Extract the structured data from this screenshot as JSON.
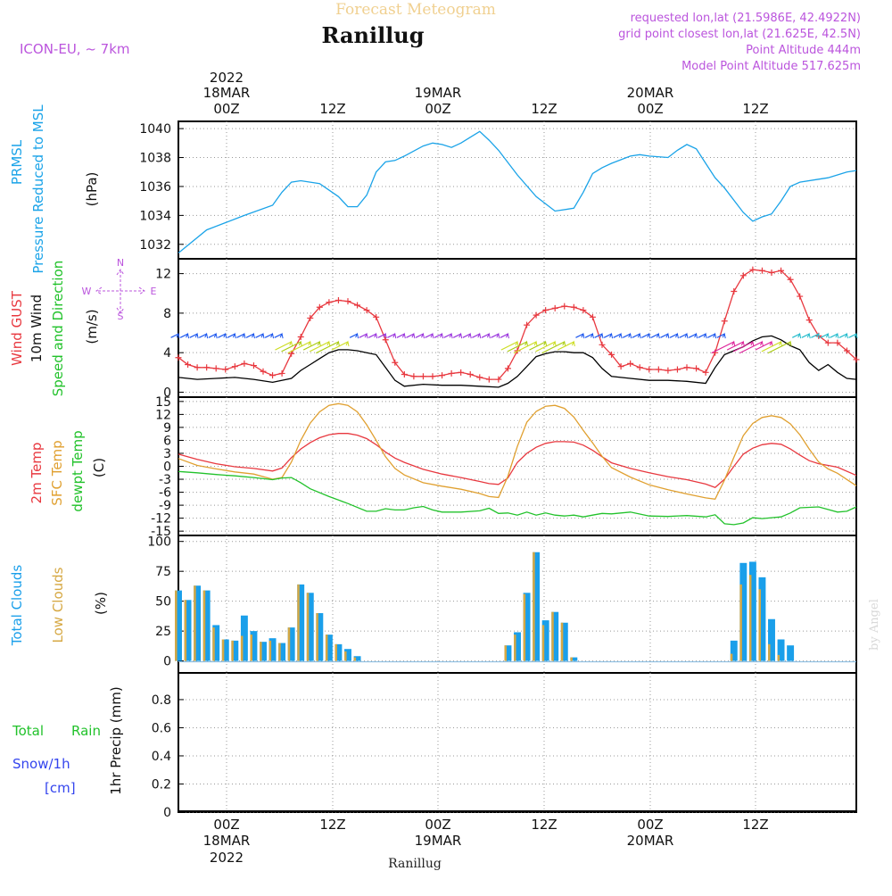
{
  "header": {
    "meteogram_title": "Forecast Meteogram",
    "location": "Ranillug",
    "model": "ICON-EU, ~ 7km",
    "requested": "requested lon,lat (21.5986E, 42.4922N)",
    "grid_point": "grid point closest lon,lat (21.625E, 42.5N)",
    "point_altitude": "Point Altitude 444m",
    "model_altitude": "Model Point Altitude 517.625m",
    "credit": "by Angel",
    "footer_location": "Ranillug"
  },
  "time_axis": {
    "top_labels": [
      {
        "day": "18MAR",
        "hour": "00Z",
        "year": "2022"
      },
      {
        "day": "",
        "hour": "12Z",
        "year": ""
      },
      {
        "day": "19MAR",
        "hour": "00Z",
        "year": ""
      },
      {
        "day": "",
        "hour": "12Z",
        "year": ""
      },
      {
        "day": "20MAR",
        "hour": "00Z",
        "year": ""
      },
      {
        "day": "",
        "hour": "12Z",
        "year": ""
      }
    ],
    "bottom_labels": [
      {
        "hour": "00Z",
        "day": "18MAR",
        "year": "2022"
      },
      {
        "hour": "12Z",
        "day": "",
        "year": ""
      },
      {
        "hour": "00Z",
        "day": "19MAR",
        "year": ""
      },
      {
        "hour": "12Z",
        "day": "",
        "year": ""
      },
      {
        "hour": "00Z",
        "day": "20MAR",
        "year": ""
      },
      {
        "hour": "12Z",
        "day": "",
        "year": ""
      }
    ]
  },
  "panel_labels": {
    "pressure": [
      "PRMSL",
      "Pressure Reduced to MSL",
      "(hPa)"
    ],
    "wind": [
      "Wind GUST",
      "10m Wind",
      "Speed and Direction",
      "(m/s)"
    ],
    "compass": [
      "N",
      "S",
      "W",
      "E"
    ],
    "temp": [
      "2m Temp",
      "SFC Temp",
      "dewpt Temp",
      "(C)"
    ],
    "clouds": [
      "Total Clouds",
      "Low Clouds",
      "(%)"
    ],
    "precip": [
      "Total",
      "Rain",
      "Snow/1h",
      "[cm]",
      "1hr Precip (mm)"
    ]
  },
  "colors": {
    "pressure": "#1aa3e8",
    "gust": "#e8383f",
    "wind": "#000000",
    "sfc": "#e0a030",
    "dew": "#22c22b",
    "total_cloud": "#1a9fea",
    "low_cloud": "#d6a843",
    "title_purple": "#bb55dd",
    "title_orange": "#f0d090",
    "rain": "#22c22b",
    "snow": "#3344ee"
  },
  "chart_data": [
    {
      "type": "line",
      "name": "pressure",
      "title": "PRMSL Pressure Reduced to MSL",
      "ylabel": "(hPa)",
      "xlim_hours": [
        -6,
        66
      ],
      "ylim": [
        1031,
        1040.5
      ],
      "yticks": [
        "1032",
        "1034",
        "1036",
        "1038",
        "1040"
      ],
      "series": [
        {
          "name": "PRMSL",
          "x": [
            -6,
            -3,
            -1,
            1,
            4,
            5,
            6,
            7,
            9,
            11,
            12,
            13,
            14,
            15,
            16,
            17,
            18,
            20,
            21,
            22,
            23,
            24,
            25,
            26,
            27,
            28,
            30,
            32,
            34,
            36,
            37,
            38,
            39,
            40,
            42,
            43,
            44,
            46,
            47,
            48,
            49,
            50,
            51,
            52,
            54,
            55,
            56,
            57,
            58,
            59,
            60,
            62,
            63,
            64,
            65,
            66
          ],
          "values": [
            1031.4,
            1033.0,
            1033.5,
            1034.0,
            1034.7,
            1035.6,
            1036.3,
            1036.4,
            1036.2,
            1035.3,
            1034.6,
            1034.6,
            1035.4,
            1037.0,
            1037.7,
            1037.8,
            1038.1,
            1038.8,
            1039.0,
            1038.9,
            1038.7,
            1039.0,
            1039.4,
            1039.8,
            1039.2,
            1038.5,
            1036.8,
            1035.3,
            1034.3,
            1034.5,
            1035.6,
            1036.9,
            1037.3,
            1037.6,
            1038.1,
            1038.2,
            1038.1,
            1038.0,
            1038.5,
            1038.9,
            1038.6,
            1037.6,
            1036.6,
            1035.9,
            1034.2,
            1033.6,
            1033.9,
            1034.1,
            1035.0,
            1036.0,
            1036.3,
            1036.5,
            1036.6,
            1036.8,
            1037.0,
            1037.1
          ]
        }
      ]
    },
    {
      "type": "line",
      "name": "wind",
      "title": "Wind GUST / 10m Wind Speed and Direction",
      "ylabel": "(m/s)",
      "xlim_hours": [
        -6,
        66
      ],
      "ylim": [
        -0.5,
        13.5
      ],
      "yticks": [
        "0",
        "4",
        "8",
        "12"
      ],
      "series": [
        {
          "name": "Wind GUST",
          "x": [
            -6,
            -5,
            -4,
            -3,
            -2,
            -1,
            0,
            1,
            2,
            3,
            4,
            5,
            6,
            7,
            8,
            9,
            10,
            11,
            12,
            13,
            14,
            15,
            16,
            17,
            18,
            19,
            20,
            21,
            22,
            23,
            24,
            25,
            26,
            27,
            28,
            29,
            30,
            31,
            32,
            33,
            34,
            35,
            36,
            37,
            38,
            39,
            40,
            41,
            42,
            43,
            44,
            45,
            46,
            47,
            48,
            49,
            50,
            51,
            52,
            53,
            54,
            55,
            56,
            57,
            58,
            59,
            60,
            61,
            62,
            63,
            64,
            65,
            66
          ],
          "values": [
            3.5,
            2.8,
            2.5,
            2.5,
            2.4,
            2.3,
            2.6,
            2.9,
            2.7,
            2.1,
            1.7,
            1.9,
            3.9,
            5.6,
            7.5,
            8.6,
            9.1,
            9.3,
            9.2,
            8.8,
            8.3,
            7.6,
            5.3,
            3.0,
            1.8,
            1.6,
            1.6,
            1.6,
            1.7,
            1.9,
            2.0,
            1.8,
            1.5,
            1.3,
            1.3,
            2.4,
            4.2,
            6.8,
            7.8,
            8.3,
            8.5,
            8.7,
            8.6,
            8.3,
            7.6,
            4.8,
            3.8,
            2.6,
            2.9,
            2.5,
            2.3,
            2.3,
            2.2,
            2.3,
            2.5,
            2.4,
            2.0,
            4.0,
            7.2,
            10.2,
            11.8,
            12.4,
            12.3,
            12.1,
            12.3,
            11.4,
            9.7,
            7.3,
            5.7,
            5.0,
            5.0,
            4.2,
            3.3
          ]
        },
        {
          "name": "10m Wind",
          "x": [
            -6,
            -4,
            -2,
            0,
            2,
            4,
            6,
            7,
            8,
            9,
            10,
            11,
            12,
            13,
            14,
            15,
            16,
            17,
            18,
            20,
            22,
            24,
            26,
            28,
            29,
            30,
            31,
            32,
            33,
            34,
            35,
            36,
            37,
            38,
            39,
            40,
            42,
            44,
            46,
            48,
            50,
            51,
            52,
            53,
            54,
            55,
            56,
            57,
            58,
            59,
            60,
            61,
            62,
            63,
            64,
            65,
            66
          ],
          "values": [
            1.5,
            1.3,
            1.4,
            1.5,
            1.3,
            1.0,
            1.4,
            2.2,
            2.8,
            3.4,
            4.0,
            4.3,
            4.3,
            4.2,
            4.0,
            3.8,
            2.5,
            1.2,
            0.6,
            0.8,
            0.7,
            0.7,
            0.6,
            0.5,
            0.9,
            1.6,
            2.6,
            3.6,
            3.9,
            4.1,
            4.1,
            4.0,
            4.0,
            3.5,
            2.4,
            1.6,
            1.4,
            1.2,
            1.2,
            1.1,
            0.9,
            2.5,
            3.8,
            4.2,
            4.6,
            5.2,
            5.6,
            5.7,
            5.3,
            4.7,
            4.3,
            3.0,
            2.2,
            2.8,
            2.0,
            1.4,
            1.3
          ]
        }
      ],
      "wind_barbs_hours": [
        -6,
        -5,
        -4,
        -3,
        -2,
        -1,
        0,
        1,
        2,
        3,
        4,
        5,
        6,
        7,
        8,
        9,
        10,
        11,
        12,
        13,
        14,
        15,
        16,
        17,
        18,
        19,
        20,
        21,
        22,
        23,
        24,
        25,
        26,
        27,
        28,
        29,
        30,
        31,
        32,
        33,
        34,
        35,
        36,
        37,
        38,
        39,
        40,
        41,
        42,
        43,
        44,
        45,
        46,
        47,
        48,
        49,
        50,
        51,
        52,
        53,
        54,
        55,
        56,
        57,
        58,
        59,
        60,
        61,
        62,
        63,
        64,
        65,
        66
      ]
    },
    {
      "type": "line",
      "name": "temperature",
      "title": "2m Temp / SFC Temp / dewpt Temp",
      "ylabel": "(C)",
      "xlim_hours": [
        -6,
        66
      ],
      "ylim": [
        -16,
        16
      ],
      "yticks": [
        "15",
        "12",
        "9",
        "6",
        "3",
        "0",
        "-3",
        "-6",
        "-9",
        "-12",
        "-15"
      ],
      "series": [
        {
          "name": "2m Temp",
          "x": [
            -6,
            -4,
            -2,
            0,
            2,
            4,
            5,
            6,
            7,
            8,
            9,
            10,
            11,
            12,
            13,
            14,
            15,
            16,
            17,
            18,
            20,
            22,
            24,
            26,
            27,
            28,
            29,
            30,
            31,
            32,
            33,
            34,
            35,
            36,
            37,
            38,
            39,
            40,
            42,
            44,
            46,
            48,
            50,
            51,
            52,
            53,
            54,
            55,
            56,
            57,
            58,
            59,
            60,
            61,
            62,
            63,
            64,
            66
          ],
          "values": [
            2.8,
            1.6,
            0.6,
            -0.1,
            -0.5,
            -1.1,
            -0.4,
            2.0,
            4.0,
            5.5,
            6.6,
            7.3,
            7.6,
            7.6,
            7.2,
            6.4,
            5.0,
            3.3,
            1.9,
            0.9,
            -0.7,
            -1.8,
            -2.6,
            -3.5,
            -4.0,
            -4.2,
            -2.7,
            0.9,
            3.0,
            4.4,
            5.3,
            5.7,
            5.7,
            5.6,
            4.9,
            3.7,
            2.2,
            0.8,
            -0.5,
            -1.5,
            -2.4,
            -3.1,
            -4.1,
            -4.9,
            -3.0,
            0.0,
            2.8,
            4.2,
            5.0,
            5.3,
            5.1,
            4.0,
            2.6,
            1.3,
            0.6,
            0.2,
            -0.2,
            -2.1
          ]
        },
        {
          "name": "SFC Temp",
          "x": [
            -6,
            -4,
            -2,
            0,
            2,
            4,
            5,
            6,
            7,
            8,
            9,
            10,
            11,
            12,
            13,
            14,
            15,
            16,
            17,
            18,
            20,
            22,
            24,
            26,
            27,
            28,
            29,
            30,
            31,
            32,
            33,
            34,
            35,
            36,
            37,
            38,
            39,
            40,
            42,
            44,
            46,
            48,
            50,
            51,
            52,
            53,
            54,
            55,
            56,
            57,
            58,
            59,
            60,
            61,
            62,
            63,
            64,
            66
          ],
          "values": [
            1.8,
            0.2,
            -0.6,
            -1.3,
            -1.8,
            -3.0,
            -2.6,
            1.0,
            6.0,
            10.0,
            12.6,
            14.1,
            14.5,
            14.1,
            12.6,
            9.6,
            6.0,
            2.2,
            -0.5,
            -2.0,
            -3.8,
            -4.6,
            -5.3,
            -6.3,
            -7.0,
            -7.2,
            -2.3,
            4.6,
            10.2,
            12.7,
            13.9,
            14.1,
            13.4,
            11.4,
            8.3,
            5.4,
            2.3,
            -0.3,
            -2.5,
            -4.3,
            -5.4,
            -6.4,
            -7.3,
            -7.6,
            -3.2,
            2.1,
            7.1,
            9.9,
            11.3,
            11.7,
            11.3,
            9.8,
            7.3,
            4.0,
            1.0,
            -0.6,
            -1.6,
            -4.5
          ]
        },
        {
          "name": "dewpt Temp",
          "x": [
            -6,
            -4,
            -2,
            0,
            2,
            4,
            5,
            6,
            7,
            8,
            10,
            12,
            14,
            15,
            16,
            17,
            18,
            19,
            20,
            21,
            22,
            24,
            26,
            27,
            28,
            29,
            30,
            31,
            32,
            33,
            34,
            35,
            36,
            37,
            38,
            39,
            40,
            42,
            44,
            46,
            48,
            50,
            51,
            52,
            53,
            54,
            55,
            56,
            57,
            58,
            59,
            60,
            61,
            62,
            63,
            64,
            65,
            66
          ],
          "values": [
            -1.2,
            -1.5,
            -1.9,
            -2.2,
            -2.6,
            -3.1,
            -2.7,
            -2.6,
            -3.8,
            -5.2,
            -7.0,
            -8.6,
            -10.4,
            -10.4,
            -9.8,
            -10.1,
            -10.1,
            -9.6,
            -9.3,
            -10.1,
            -10.6,
            -10.6,
            -10.3,
            -9.7,
            -10.9,
            -10.8,
            -11.3,
            -10.6,
            -11.3,
            -10.8,
            -11.3,
            -11.5,
            -11.3,
            -11.7,
            -11.3,
            -10.9,
            -11.0,
            -10.6,
            -11.5,
            -11.6,
            -11.4,
            -11.7,
            -11.2,
            -13.3,
            -13.5,
            -13.1,
            -11.9,
            -12.1,
            -11.9,
            -11.7,
            -10.8,
            -9.6,
            -9.5,
            -9.4,
            -10.0,
            -10.6,
            -10.4,
            -9.4
          ]
        }
      ]
    },
    {
      "type": "bar",
      "name": "clouds",
      "title": "Total Clouds / Low Clouds",
      "ylabel": "(%)",
      "xlim_hours": [
        -6,
        66
      ],
      "ylim": [
        -10,
        105
      ],
      "yticks": [
        "0",
        "25",
        "50",
        "75",
        "100"
      ],
      "x": [
        -6,
        -5,
        -4,
        -3,
        -2,
        -1,
        0,
        1,
        2,
        3,
        4,
        5,
        6,
        7,
        8,
        9,
        10,
        11,
        12,
        13,
        29,
        30,
        31,
        32,
        33,
        34,
        35,
        36,
        53,
        54,
        55,
        56,
        57,
        58,
        59
      ],
      "series": [
        {
          "name": "Total Clouds",
          "values": [
            59,
            51,
            63,
            59,
            30,
            18,
            17,
            38,
            25,
            16,
            19,
            15,
            28,
            64,
            57,
            40,
            22,
            14,
            10,
            4,
            13,
            24,
            57,
            91,
            34,
            41,
            32,
            3,
            17,
            82,
            83,
            70,
            35,
            18,
            13
          ]
        },
        {
          "name": "Low Clouds",
          "values": [
            59,
            51,
            63,
            59,
            28,
            18,
            17,
            21,
            22,
            16,
            17,
            15,
            28,
            64,
            57,
            40,
            22,
            14,
            8,
            3,
            13,
            22,
            56,
            91,
            30,
            41,
            32,
            3,
            6,
            64,
            72,
            60,
            14,
            5,
            0
          ]
        }
      ]
    },
    {
      "type": "bar",
      "name": "precipitation",
      "title": "1hr Precip (mm)",
      "ylabel": "1hr Precip (mm)",
      "xlim_hours": [
        -6,
        66
      ],
      "ylim": [
        0,
        0.99
      ],
      "yticks": [
        "0",
        "0.2",
        "0.4",
        "0.6",
        "0.8"
      ],
      "series": [
        {
          "name": "Total Rain",
          "values": []
        },
        {
          "name": "Snow/1h",
          "values": []
        }
      ]
    }
  ]
}
